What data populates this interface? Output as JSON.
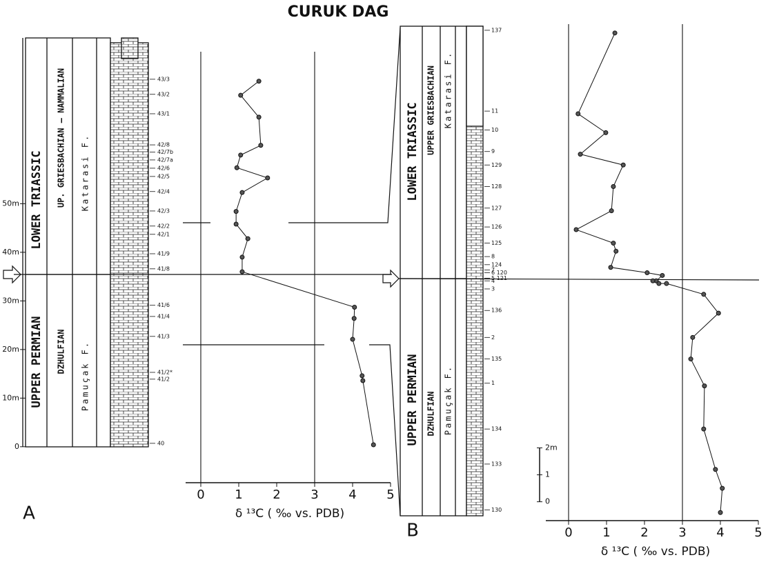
{
  "title": "CURUK DAG",
  "chart_data": [
    {
      "type": "line",
      "panel_label": "A",
      "xlabel": "δ ¹³C ( ‰ vs. PDB)",
      "x": [
        1.53,
        1.05,
        1.53,
        1.58,
        1.05,
        0.95,
        1.76,
        1.09,
        0.93,
        0.93,
        1.24,
        1.09,
        1.09,
        4.05,
        4.04,
        4.0,
        4.25,
        4.27,
        4.55
      ],
      "values": [
        75.2,
        72.3,
        67.8,
        62.0,
        60.0,
        57.4,
        55.3,
        52.3,
        48.4,
        45.8,
        42.8,
        39.0,
        36.0,
        28.7,
        26.4,
        22.1,
        14.6,
        13.6,
        0.4
      ],
      "xlim": [
        -0.4,
        5
      ],
      "xticks": [
        0,
        1,
        2,
        3,
        4,
        5
      ],
      "ylim": [
        -7.4,
        84.1
      ],
      "yticks": [
        0,
        {
          "value": 10,
          "label": "10m"
        },
        {
          "value": 20,
          "label": "20m"
        },
        {
          "value": 30,
          "label": "30m"
        },
        {
          "value": 40,
          "label": "40m"
        },
        {
          "value": 50,
          "label": "50m"
        }
      ],
      "vlines": [
        0,
        3
      ],
      "boundary": 35.5,
      "samples": [
        {
          "label": "43/3",
          "height": 75.6
        },
        {
          "label": "43/2",
          "height": 72.5
        },
        {
          "label": "43/1",
          "height": 68.5
        },
        {
          "label": "42/8",
          "height": 62.1
        },
        {
          "label": "42/7b",
          "height": 60.6
        },
        {
          "label": "42/7a",
          "height": 59.0
        },
        {
          "label": "42/6",
          "height": 57.3
        },
        {
          "label": "42/5",
          "height": 55.6
        },
        {
          "label": "42/4",
          "height": 52.5
        },
        {
          "label": "42/3",
          "height": 48.5
        },
        {
          "label": "42/2",
          "height": 45.4
        },
        {
          "label": "42/1",
          "height": 43.7
        },
        {
          "label": "41/9",
          "height": 39.7
        },
        {
          "label": "41/8",
          "height": 36.6
        },
        {
          "label": "41/6",
          "height": 29.1
        },
        {
          "label": "41/4",
          "height": 26.8
        },
        {
          "label": "41/3",
          "height": 22.7
        },
        {
          "label": "41/2*",
          "height": 15.3
        },
        {
          "label": "41/2",
          "height": 13.9
        },
        {
          "label": "40",
          "height": 0.7
        }
      ],
      "column": {
        "upper_system": "LOWER TRIASSIC",
        "upper_stage": "UP. GRIESBACHIAN – NAMMALIAN",
        "upper_formation": "Katarasi F.",
        "lower_system": "UPPER PERMIAN",
        "lower_stage": "DZHULFIAN",
        "lower_formation": "Pamuçak F."
      }
    },
    {
      "type": "line",
      "panel_label": "B",
      "xlabel": "δ ¹³C ( ‰ vs. PDB)",
      "x": [
        1.22,
        0.25,
        0.98,
        0.31,
        1.44,
        1.18,
        1.13,
        0.2,
        1.18,
        1.25,
        1.11,
        2.07,
        2.47,
        2.31,
        2.22,
        2.38,
        2.58,
        3.56,
        3.95,
        3.27,
        3.22,
        3.58,
        3.56,
        3.87,
        4.05,
        4.0
      ],
      "values": [
        17.4,
        14.4,
        13.7,
        12.9,
        12.5,
        11.7,
        10.8,
        10.1,
        9.6,
        9.3,
        8.7,
        8.5,
        8.4,
        8.2,
        8.2,
        8.1,
        8.1,
        7.7,
        7.0,
        6.1,
        5.3,
        4.3,
        2.7,
        1.2,
        0.5,
        -0.4
      ],
      "xlim": [
        -0.6,
        5
      ],
      "xticks": [
        0,
        1,
        2,
        3,
        4,
        5
      ],
      "ylim": [
        -0.7,
        17.6
      ],
      "yticks": [
        0,
        1,
        {
          "value": 2,
          "label": "2m"
        }
      ],
      "vlines": [
        0,
        3
      ],
      "boundary": 8.4,
      "samples": [
        {
          "label": "137",
          "height": 17.5
        },
        {
          "label": "11",
          "height": 14.5
        },
        {
          "label": "10",
          "height": 13.8
        },
        {
          "label": "9",
          "height": 13.0
        },
        {
          "label": "129",
          "height": 12.5
        },
        {
          "label": "128",
          "height": 11.7
        },
        {
          "label": "127",
          "height": 10.9
        },
        {
          "label": "126",
          "height": 10.2
        },
        {
          "label": "125",
          "height": 9.6
        },
        {
          "label": "8",
          "height": 9.1
        },
        {
          "label": "124",
          "height": 8.8
        },
        {
          "label": "7",
          "height": 8.6
        },
        {
          "label": "6 120",
          "height": 8.5
        },
        {
          "label": "5 121",
          "height": 8.3
        },
        {
          "label": "4",
          "height": 8.2
        },
        {
          "label": "3",
          "height": 7.9
        },
        {
          "label": "136",
          "height": 7.1
        },
        {
          "label": "2",
          "height": 6.1
        },
        {
          "label": "135",
          "height": 5.3
        },
        {
          "label": "1",
          "height": 4.4
        },
        {
          "label": "134",
          "height": 2.7
        },
        {
          "label": "133",
          "height": 1.4
        },
        {
          "label": "130",
          "height": -0.3
        }
      ],
      "column": {
        "upper_system": "LOWER TRIASSIC",
        "upper_stage": "UPPER GRIESBACHIAN",
        "upper_formation": "Katarasi F.",
        "lower_system": "UPPER PERMIAN",
        "lower_stage": "DZHULFIAN",
        "lower_formation": "Pamuçak F."
      }
    }
  ]
}
